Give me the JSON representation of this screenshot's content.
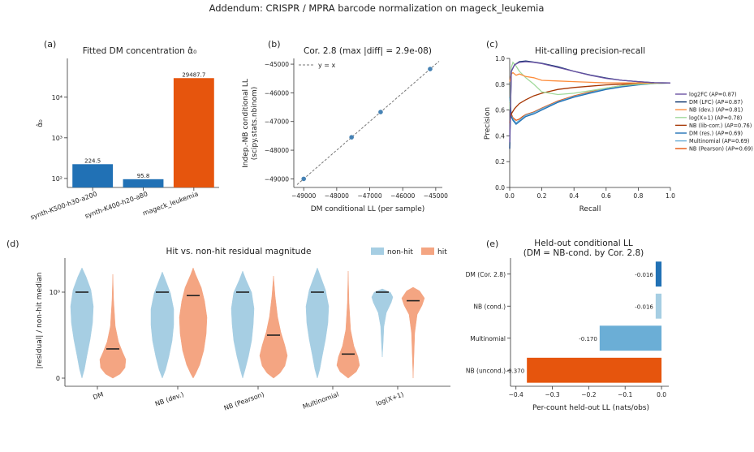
{
  "suptitle": "Addendum: CRISPR / MPRA barcode normalization on mageck_leukemia",
  "panel_a": {
    "tag": "(a)",
    "title": "Fitted DM concentration α̂₀",
    "ylabel": "α̂₀",
    "yticks": [
      "10²",
      "10³",
      "10⁴"
    ],
    "chart_data": {
      "type": "bar",
      "scale": "log",
      "ylim": [
        60,
        90000
      ],
      "categories": [
        "synth-K500-h30-a200",
        "synth-K400-h20-a80",
        "mageck_leukemia"
      ],
      "values": [
        224.5,
        95.8,
        29487.7
      ],
      "value_labels": [
        "224.5",
        "95.8",
        "29487.7"
      ],
      "colors": [
        "#2171b5",
        "#2171b5",
        "#e6550d"
      ]
    }
  },
  "panel_b": {
    "tag": "(b)",
    "title": "Cor. 2.8 (max |diff| = 2.9e-08)",
    "xlabel": "DM conditional LL (per sample)",
    "ylabel1": "Indep.-NB conditional LL",
    "ylabel2": "(scipy.stats.nbinom)",
    "legend": "y = x",
    "chart_data": {
      "type": "scatter",
      "xlim": [
        -49300,
        -44800
      ],
      "ylim": [
        -49300,
        -44800
      ],
      "xticks": [
        -49000,
        -48000,
        -47000,
        -46000,
        -45000
      ],
      "yticks": [
        -49000,
        -48000,
        -47000,
        -46000,
        -45000
      ],
      "xticklabels": [
        "−49000",
        "−48000",
        "−47000",
        "−46000",
        "−45000"
      ],
      "yticklabels": [
        "−49000",
        "−48000",
        "−47000",
        "−46000",
        "−45000"
      ],
      "points": [
        [
          -49000,
          -49000
        ],
        [
          -47550,
          -47550
        ],
        [
          -46670,
          -46670
        ],
        [
          -45170,
          -45170
        ]
      ],
      "color": "#4682b4"
    }
  },
  "panel_c": {
    "tag": "(c)",
    "title": "Hit-calling precision-recall",
    "xlabel": "Recall",
    "ylabel": "Precision",
    "xticklabels": [
      "0.0",
      "0.2",
      "0.4",
      "0.6",
      "0.8",
      "1.0"
    ],
    "yticklabels": [
      "0.0",
      "0.2",
      "0.4",
      "0.6",
      "0.8",
      "1.0"
    ],
    "chart_data": {
      "type": "line",
      "xlim": [
        0,
        1
      ],
      "ylim": [
        0,
        1
      ],
      "series": [
        {
          "name": "log2FC (AP=0.87)",
          "color": "#6a51a3",
          "x": [
            0,
            0.01,
            0.03,
            0.06,
            0.1,
            0.15,
            0.2,
            0.3,
            0.4,
            0.5,
            0.6,
            0.7,
            0.8,
            0.9,
            1.0
          ],
          "y": [
            0.35,
            0.9,
            0.95,
            0.97,
            0.975,
            0.97,
            0.96,
            0.93,
            0.9,
            0.87,
            0.845,
            0.83,
            0.82,
            0.812,
            0.81
          ]
        },
        {
          "name": "DM (LFC) (AP=0.87)",
          "color": "#08306b",
          "x": [
            0,
            0.01,
            0.03,
            0.06,
            0.1,
            0.15,
            0.2,
            0.3,
            0.4,
            0.5,
            0.6,
            0.7,
            0.8,
            0.9,
            1.0
          ],
          "y": [
            0.3,
            0.9,
            0.95,
            0.975,
            0.98,
            0.972,
            0.962,
            0.935,
            0.9,
            0.872,
            0.848,
            0.83,
            0.82,
            0.812,
            0.81
          ]
        },
        {
          "name": "NB (dev.) (AP=0.81)",
          "color": "#fd8d3c",
          "x": [
            0,
            0.01,
            0.02,
            0.04,
            0.06,
            0.1,
            0.15,
            0.2,
            0.3,
            0.4,
            0.5,
            0.6,
            0.7,
            0.8,
            0.9,
            1.0
          ],
          "y": [
            0.82,
            0.88,
            0.89,
            0.87,
            0.88,
            0.86,
            0.85,
            0.83,
            0.825,
            0.82,
            0.815,
            0.81,
            0.81,
            0.81,
            0.81,
            0.81
          ]
        },
        {
          "name": "log(X+1) (AP=0.78)",
          "color": "#a1d99b",
          "x": [
            0,
            0.01,
            0.02,
            0.04,
            0.06,
            0.1,
            0.15,
            0.2,
            0.3,
            0.4,
            0.5,
            0.6,
            0.7,
            0.8,
            0.9,
            1.0
          ],
          "y": [
            0.6,
            0.93,
            0.97,
            0.94,
            0.9,
            0.85,
            0.8,
            0.74,
            0.72,
            0.73,
            0.75,
            0.77,
            0.79,
            0.8,
            0.805,
            0.81
          ]
        },
        {
          "name": "NB (lib-corr.) (AP=0.76)",
          "color": "#a63603",
          "x": [
            0,
            0.01,
            0.03,
            0.06,
            0.1,
            0.15,
            0.2,
            0.3,
            0.4,
            0.5,
            0.6,
            0.7,
            0.8,
            0.9,
            1.0
          ],
          "y": [
            0.5,
            0.57,
            0.61,
            0.65,
            0.68,
            0.71,
            0.73,
            0.76,
            0.775,
            0.785,
            0.795,
            0.8,
            0.805,
            0.81,
            0.81
          ]
        },
        {
          "name": "DM (res.) (AP=0.69)",
          "color": "#2171b5",
          "x": [
            0,
            0.01,
            0.02,
            0.04,
            0.06,
            0.08,
            0.1,
            0.15,
            0.2,
            0.3,
            0.4,
            0.5,
            0.6,
            0.7,
            0.8,
            0.9,
            1.0
          ],
          "y": [
            0.7,
            0.55,
            0.52,
            0.49,
            0.51,
            0.53,
            0.55,
            0.57,
            0.6,
            0.66,
            0.7,
            0.73,
            0.76,
            0.78,
            0.795,
            0.805,
            0.81
          ]
        },
        {
          "name": "Multinomial (AP=0.69)",
          "color": "#6baed6",
          "x": [
            0,
            0.01,
            0.02,
            0.04,
            0.06,
            0.08,
            0.1,
            0.15,
            0.2,
            0.3,
            0.4,
            0.5,
            0.6,
            0.7,
            0.8,
            0.9,
            1.0
          ],
          "y": [
            0.68,
            0.56,
            0.53,
            0.5,
            0.52,
            0.54,
            0.56,
            0.58,
            0.61,
            0.665,
            0.705,
            0.735,
            0.765,
            0.785,
            0.8,
            0.808,
            0.81
          ]
        },
        {
          "name": "NB (Pearson) (AP=0.69)",
          "color": "#e6550d",
          "x": [
            0,
            0.01,
            0.02,
            0.04,
            0.06,
            0.08,
            0.1,
            0.15,
            0.2,
            0.3,
            0.4,
            0.5,
            0.6,
            0.7,
            0.8,
            0.9,
            1.0
          ],
          "y": [
            0.66,
            0.57,
            0.54,
            0.52,
            0.53,
            0.55,
            0.565,
            0.585,
            0.615,
            0.67,
            0.71,
            0.74,
            0.77,
            0.79,
            0.8,
            0.808,
            0.81
          ]
        }
      ]
    }
  },
  "panel_d": {
    "tag": "(d)",
    "title": "Hit vs. non-hit residual magnitude",
    "ylabel": "|residual| / non-hit median",
    "yticks": [
      "0",
      "10⁰"
    ],
    "legend": [
      "non-hit",
      "hit"
    ],
    "chart_data": {
      "type": "violin",
      "categories": [
        "DM",
        "NB (dev.)",
        "NB (Pearson)",
        "Multinomial",
        "log(X+1)"
      ],
      "colors": {
        "non-hit": "#a6cee3",
        "hit": "#f4a582"
      },
      "nonhit_median": [
        1.0,
        1.0,
        1.0,
        1.0,
        1.0
      ],
      "hit_median": [
        0.34,
        0.96,
        0.5,
        0.28,
        0.9
      ]
    }
  },
  "panel_e": {
    "tag": "(e)",
    "title1": "Held-out conditional LL",
    "title2": "(DM = NB-cond. by Cor. 2.8)",
    "xlabel": "Per-count held-out LL (nats/obs)",
    "xticklabels": [
      "−0.4",
      "−0.3",
      "−0.2",
      "−0.1",
      "0.0"
    ],
    "chart_data": {
      "type": "barh",
      "xlim": [
        -0.415,
        0.02
      ],
      "categories": [
        "DM (Cor. 2.8)",
        "NB (cond.)",
        "Multinomial",
        "NB (uncond.)"
      ],
      "values": [
        -0.016,
        -0.016,
        -0.17,
        -0.37
      ],
      "value_labels": [
        "-0.016",
        "-0.016",
        "-0.170",
        "-0.370"
      ],
      "colors": [
        "#2171b5",
        "#a6cee3",
        "#6baed6",
        "#e6550d"
      ]
    }
  }
}
